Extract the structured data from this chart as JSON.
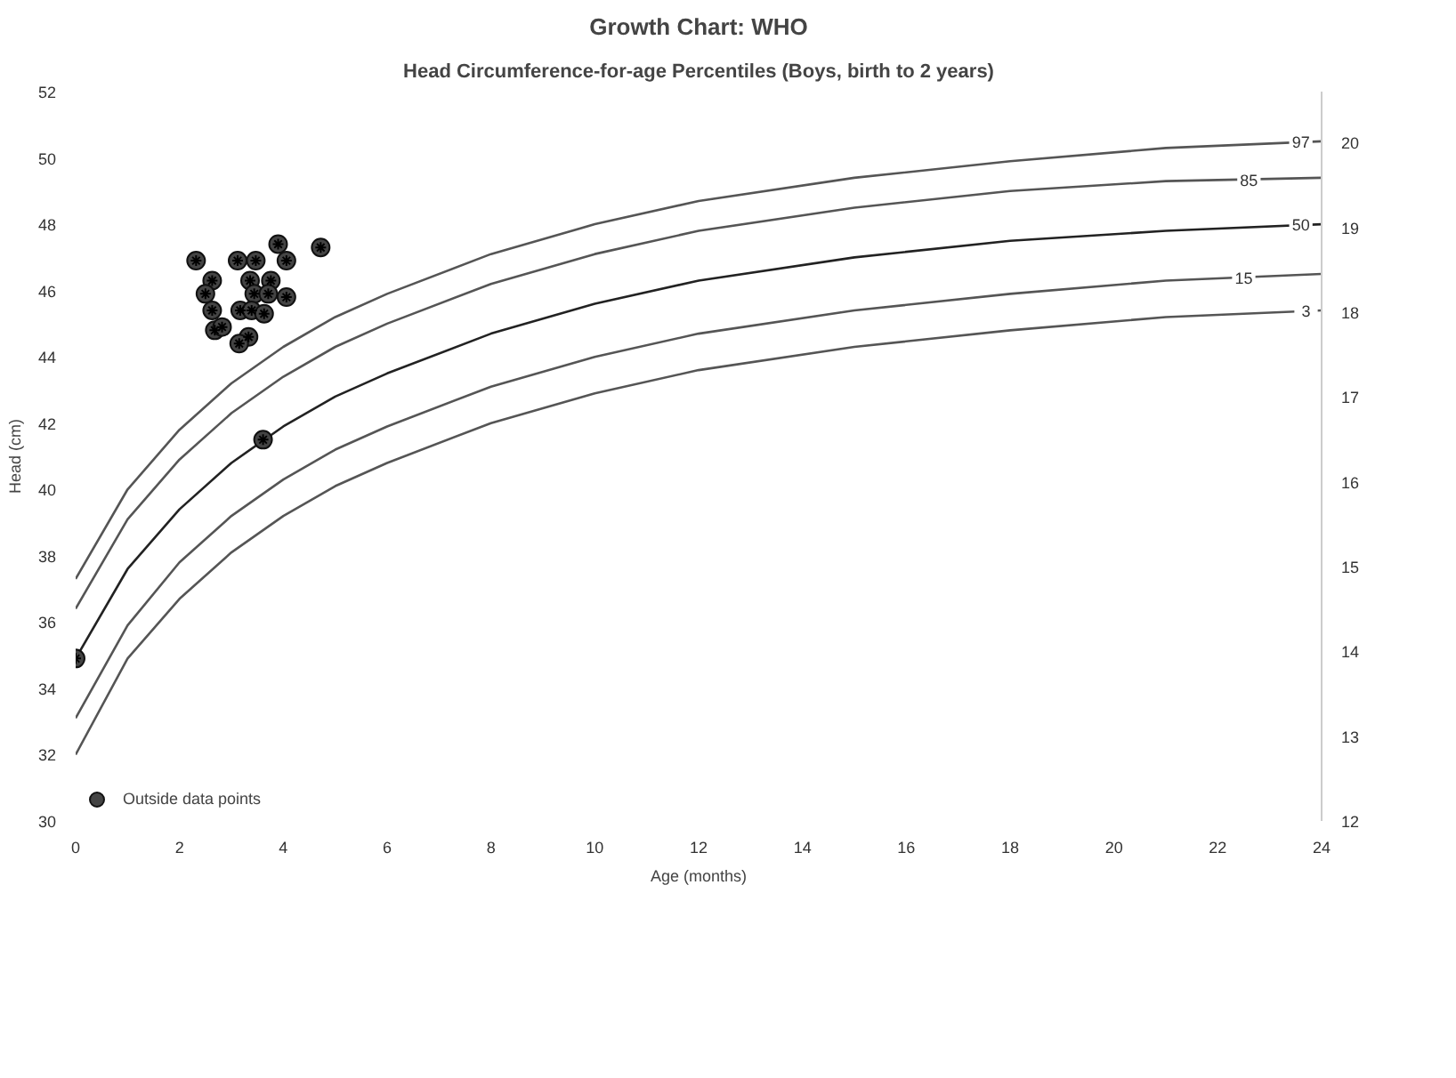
{
  "chart_data": {
    "type": "line",
    "title": "Growth Chart: WHO",
    "subtitle": "Head Circumference-for-age Percentiles (Boys, birth to 2 years)",
    "xlabel": "Age (months)",
    "ylabel": "Head (cm)",
    "x": [
      0,
      1,
      2,
      3,
      4,
      5,
      6,
      8,
      10,
      12,
      15,
      18,
      21,
      24
    ],
    "series": [
      {
        "color": "#555555",
        "values": [
          37.3,
          40.0,
          41.8,
          43.2,
          44.3,
          45.2,
          45.9,
          47.1,
          48.0,
          48.7,
          49.4,
          49.9,
          50.3,
          50.5
        ]
      },
      {
        "color": "#555555",
        "values": [
          36.4,
          39.1,
          40.9,
          42.3,
          43.4,
          44.3,
          45.0,
          46.2,
          47.1,
          47.8,
          48.5,
          49.0,
          49.3,
          49.4
        ]
      },
      {
        "color": "#222222",
        "values": [
          34.9,
          37.6,
          39.4,
          40.8,
          41.9,
          42.8,
          43.5,
          44.7,
          45.6,
          46.3,
          47.0,
          47.5,
          47.8,
          48.0
        ]
      },
      {
        "color": "#555555",
        "values": [
          33.1,
          35.9,
          37.8,
          39.2,
          40.3,
          41.2,
          41.9,
          43.1,
          44.0,
          44.7,
          45.4,
          45.9,
          46.3,
          46.5
        ]
      },
      {
        "color": "#555555",
        "values": [
          32.0,
          34.9,
          36.7,
          38.1,
          39.2,
          40.1,
          40.8,
          42.0,
          42.9,
          43.6,
          44.3,
          44.8,
          45.2,
          45.4
        ]
      },
      {
        "name": "Outside data points",
        "type": "scatter",
        "marker": "circle",
        "color": "#444444",
        "x": [
          0,
          3.9,
          4.72,
          2.32,
          3.12,
          3.47,
          4.06,
          2.63,
          3.36,
          3.76,
          2.5,
          3.44,
          3.71,
          4.06,
          2.63,
          3.17,
          3.39,
          3.63,
          2.68,
          2.82,
          3.33,
          3.15,
          3.61
        ],
        "values": [
          34.9,
          47.4,
          47.3,
          46.9,
          46.9,
          46.9,
          46.9,
          46.3,
          46.3,
          46.3,
          45.9,
          45.9,
          45.9,
          45.8,
          45.4,
          45.4,
          45.4,
          45.3,
          44.8,
          44.9,
          44.6,
          44.4,
          41.5
        ]
      }
    ],
    "xlim": [
      0,
      24
    ],
    "ylim": [
      30,
      52
    ],
    "xticks": [
      0,
      2,
      4,
      6,
      8,
      10,
      12,
      14,
      16,
      18,
      20,
      22,
      24
    ],
    "yticks": [
      30,
      32,
      34,
      36,
      38,
      40,
      42,
      44,
      46,
      48,
      50,
      52
    ],
    "y2lim": [
      12,
      20.6
    ],
    "y2ticks": [
      12,
      13,
      14,
      15,
      16,
      17,
      18,
      19,
      20
    ],
    "annotations": [
      {
        "text": "97",
        "x": 23.6,
        "y": 50.5
      },
      {
        "text": "85",
        "x": 22.6,
        "y": 49.35
      },
      {
        "text": "50",
        "x": 23.6,
        "y": 48.0
      },
      {
        "text": "15",
        "x": 22.5,
        "y": 46.4
      },
      {
        "text": "3",
        "x": 23.7,
        "y": 45.4
      }
    ],
    "grid": false,
    "legend": "bottom left"
  }
}
